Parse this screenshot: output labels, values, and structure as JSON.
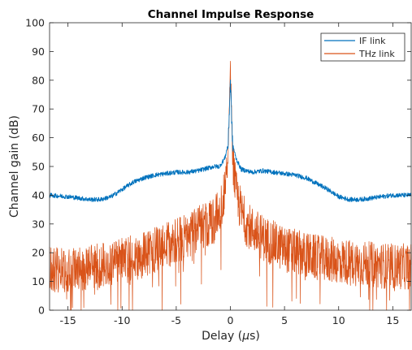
{
  "chart_data": {
    "type": "line",
    "title": "Channel Impulse Response",
    "xlabel_text": "Delay (",
    "xlabel_unit_mu": "μ",
    "xlabel_unit_rest": "s)",
    "ylabel": "Channel gain (dB)",
    "xlim": [
      -16.7,
      16.7
    ],
    "ylim": [
      0,
      100
    ],
    "x_ticks": [
      -15,
      -10,
      -5,
      0,
      5,
      10,
      15
    ],
    "x_tick_labels": [
      "-15",
      "-10",
      "-5",
      "0",
      "5",
      "10",
      "15"
    ],
    "y_ticks": [
      0,
      10,
      20,
      30,
      40,
      50,
      60,
      70,
      80,
      90,
      100
    ],
    "y_tick_labels": [
      "0",
      "10",
      "20",
      "30",
      "40",
      "50",
      "60",
      "70",
      "80",
      "90",
      "100"
    ],
    "grid": false,
    "legend_position": "top-right",
    "series": [
      {
        "name": "IF link",
        "color": "#0072BD",
        "x": [
          -16.7,
          -15,
          -13,
          -12,
          -11,
          -10,
          -9,
          -8,
          -7,
          -6,
          -5,
          -4,
          -3,
          -2,
          -1.5,
          -1,
          -0.5,
          -0.2,
          0,
          0.2,
          0.5,
          1,
          1.5,
          2,
          3,
          4,
          5,
          6,
          7,
          8,
          9,
          10,
          11,
          12,
          13,
          14,
          15,
          16.7
        ],
        "y": [
          40,
          39.5,
          38.5,
          38.5,
          39.5,
          42,
          44.5,
          46,
          47,
          47.5,
          48,
          48,
          48.5,
          49.5,
          50,
          50,
          53,
          58,
          80,
          58,
          53,
          49,
          48.5,
          48,
          48.5,
          48,
          47.5,
          47,
          46,
          44,
          42,
          39.5,
          38.5,
          38.5,
          39,
          39.5,
          40,
          40
        ]
      },
      {
        "name": "THz link",
        "color": "#D95319",
        "x": [
          -16.7,
          -15,
          -12,
          -10,
          -8,
          -6,
          -5,
          -4,
          -3,
          -2,
          -1.5,
          -1,
          -0.5,
          -0.2,
          0,
          0.2,
          0.5,
          1,
          1.5,
          2,
          3,
          4,
          5,
          6,
          8,
          10,
          12,
          15,
          16.7
        ],
        "y": [
          15,
          15,
          16,
          18,
          20,
          23,
          25,
          27,
          29,
          31,
          32,
          35,
          42,
          55,
          86,
          55,
          42,
          35,
          31,
          29,
          26,
          24,
          22,
          21,
          19,
          18,
          17,
          16,
          16
        ]
      }
    ]
  }
}
